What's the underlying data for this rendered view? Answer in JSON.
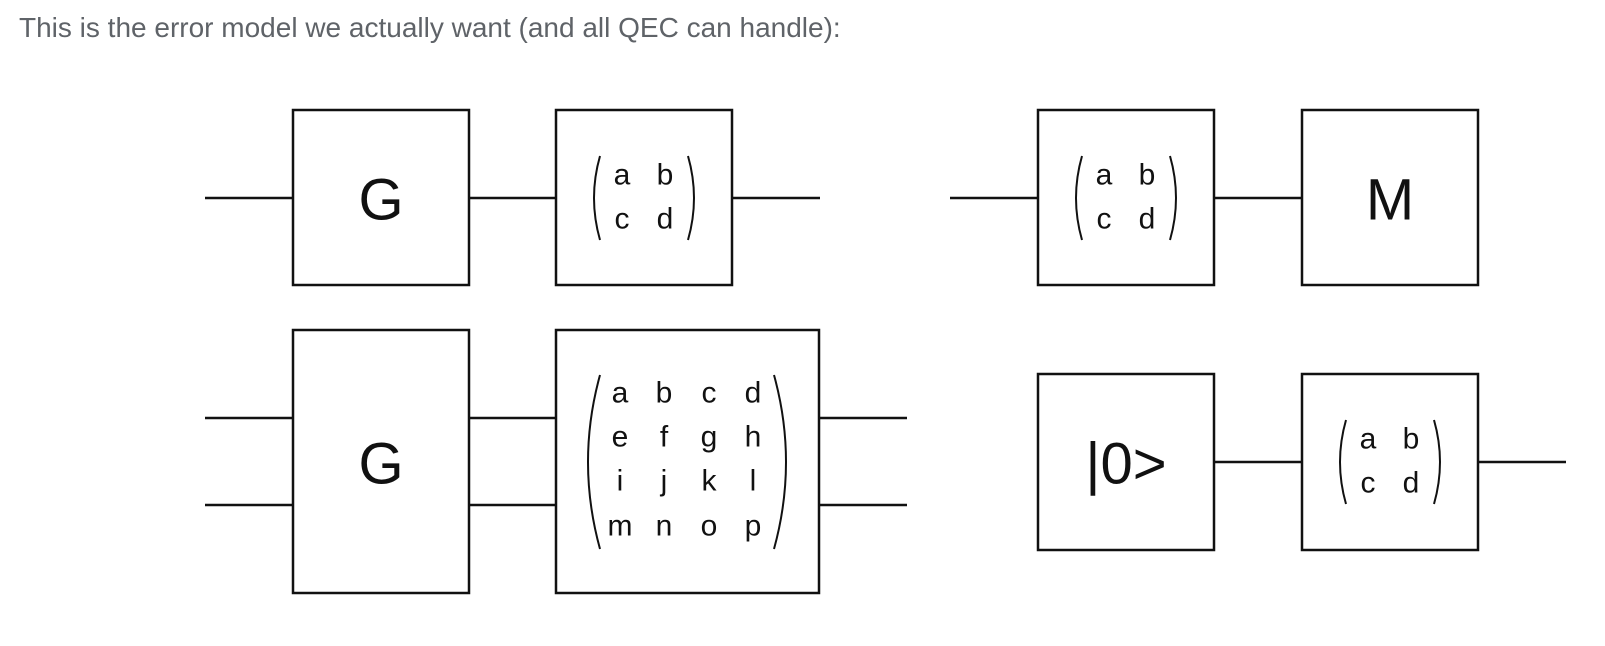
{
  "caption": "This is the error model we actually want (and all QEC can handle):",
  "circuits": {
    "single_gate": {
      "gate_label": "G",
      "matrix": [
        [
          "a",
          "b"
        ],
        [
          "c",
          "d"
        ]
      ]
    },
    "measurement": {
      "matrix": [
        [
          "a",
          "b"
        ],
        [
          "c",
          "d"
        ]
      ],
      "gate_label": "M"
    },
    "two_qubit_gate": {
      "gate_label": "G",
      "matrix": [
        [
          "a",
          "b",
          "c",
          "d"
        ],
        [
          "e",
          "f",
          "g",
          "h"
        ],
        [
          "i",
          "j",
          "k",
          "l"
        ],
        [
          "m",
          "n",
          "o",
          "p"
        ]
      ]
    },
    "preparation": {
      "gate_label": "|0>",
      "matrix": [
        [
          "a",
          "b"
        ],
        [
          "c",
          "d"
        ]
      ]
    }
  }
}
